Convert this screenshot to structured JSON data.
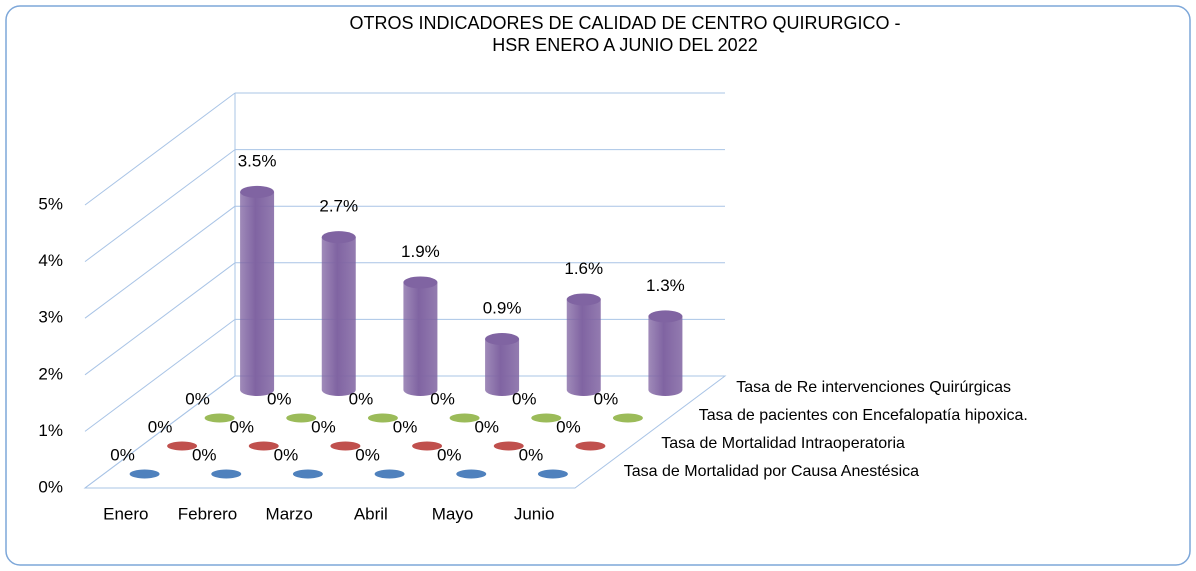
{
  "chart_data": {
    "type": "bar3d",
    "title": "OTROS INDICADORES DE CALIDAD DE CENTRO QUIRURGICO - HSR  ENERO A JUNIO DEL 2022",
    "categories": [
      "Enero",
      "Febrero",
      "Marzo",
      "Abril",
      "Mayo",
      "Junio"
    ],
    "series": [
      {
        "name": "Tasa de Mortalidad por Causa Anestésica",
        "color": "#4f81bd",
        "values": [
          0,
          0,
          0,
          0,
          0,
          0
        ],
        "value_labels": [
          "0%",
          "0%",
          "0%",
          "0%",
          "0%",
          "0%"
        ]
      },
      {
        "name": "Tasa de Mortalidad Intraoperatoria",
        "color": "#c0504d",
        "values": [
          0,
          0,
          0,
          0,
          0,
          0
        ],
        "value_labels": [
          "0%",
          "0%",
          "0%",
          "0%",
          "0%",
          "0%"
        ]
      },
      {
        "name": "Tasa de pacientes con Encefalopatía hipoxica.",
        "color": "#9bbb59",
        "values": [
          0,
          0,
          0,
          0,
          0,
          0
        ],
        "value_labels": [
          "0%",
          "0%",
          "0%",
          "0%",
          "0%",
          "0%"
        ]
      },
      {
        "name": "Tasa de Re intervenciones Quirúrgicas",
        "color": "#8064a2",
        "values": [
          3.5,
          2.7,
          1.9,
          0.9,
          1.6,
          1.3
        ],
        "value_labels": [
          "3.5%",
          "2.7%",
          "1.9%",
          "0.9%",
          "1.6%",
          "1.3%"
        ]
      }
    ],
    "ylim": [
      0,
      5
    ],
    "yticks": [
      {
        "value": 0,
        "label": "0%"
      },
      {
        "value": 1,
        "label": "1%"
      },
      {
        "value": 2,
        "label": "2%"
      },
      {
        "value": 3,
        "label": "3%"
      },
      {
        "value": 4,
        "label": "4%"
      },
      {
        "value": 5,
        "label": "5%"
      }
    ],
    "grid": true
  }
}
